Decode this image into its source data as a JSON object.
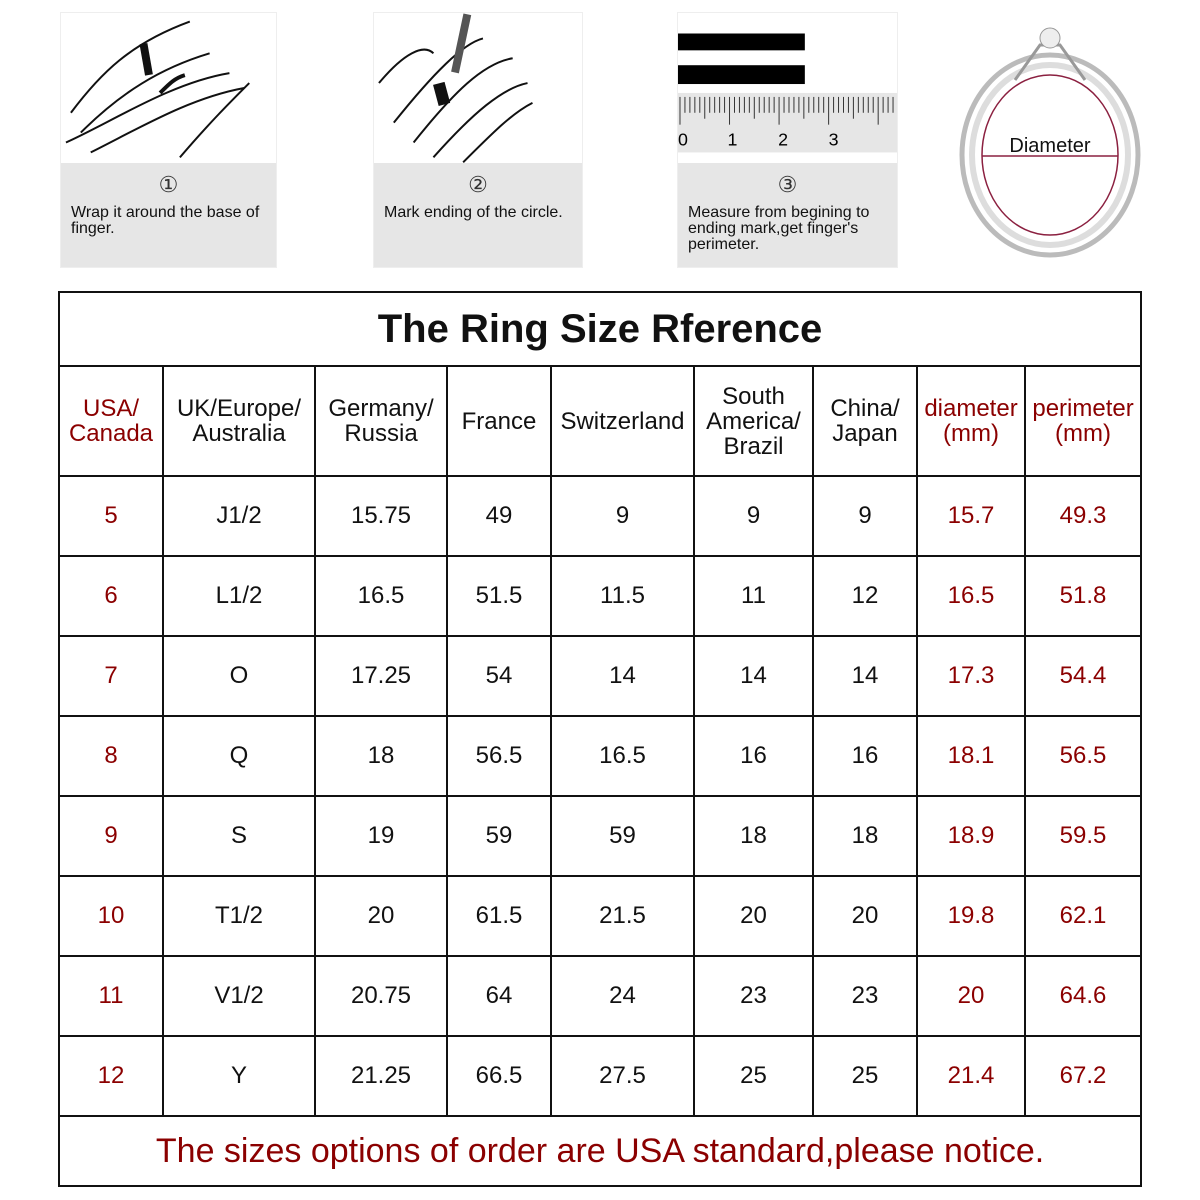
{
  "steps": [
    {
      "number": "①",
      "text": "Wrap it around the base of finger."
    },
    {
      "number": "②",
      "text": "Mark ending of the circle."
    },
    {
      "number": "③",
      "text": "Measure from begining to ending mark,get finger's perimeter.",
      "ruler_labels": [
        "0",
        "1",
        "2",
        "3"
      ]
    }
  ],
  "ring": {
    "label": "Diameter"
  },
  "table": {
    "title": "The Ring Size Rference",
    "headers": [
      "USA/ Canada",
      "UK/Europe/ Australia",
      "Germany/ Russia",
      "France",
      "Switzerland",
      "South America/ Brazil",
      "China/ Japan",
      "diameter (mm)",
      "perimeter (mm)"
    ],
    "rows": [
      [
        "5",
        "J1/2",
        "15.75",
        "49",
        "9",
        "9",
        "9",
        "15.7",
        "49.3"
      ],
      [
        "6",
        "L1/2",
        "16.5",
        "51.5",
        "11.5",
        "11",
        "12",
        "16.5",
        "51.8"
      ],
      [
        "7",
        "O",
        "17.25",
        "54",
        "14",
        "14",
        "14",
        "17.3",
        "54.4"
      ],
      [
        "8",
        "Q",
        "18",
        "56.5",
        "16.5",
        "16",
        "16",
        "18.1",
        "56.5"
      ],
      [
        "9",
        "S",
        "19",
        "59",
        "59",
        "18",
        "18",
        "18.9",
        "59.5"
      ],
      [
        "10",
        "T1/2",
        "20",
        "61.5",
        "21.5",
        "20",
        "20",
        "19.8",
        "62.1"
      ],
      [
        "11",
        "V1/2",
        "20.75",
        "64",
        "24",
        "23",
        "23",
        "20",
        "64.6"
      ],
      [
        "12",
        "Y",
        "21.25",
        "66.5",
        "27.5",
        "25",
        "25",
        "21.4",
        "67.2"
      ]
    ],
    "footer": "The sizes options of order are USA standard,please notice."
  },
  "colors": {
    "accent_red": "#8b0000",
    "caption_gray": "#e6e6e6"
  }
}
